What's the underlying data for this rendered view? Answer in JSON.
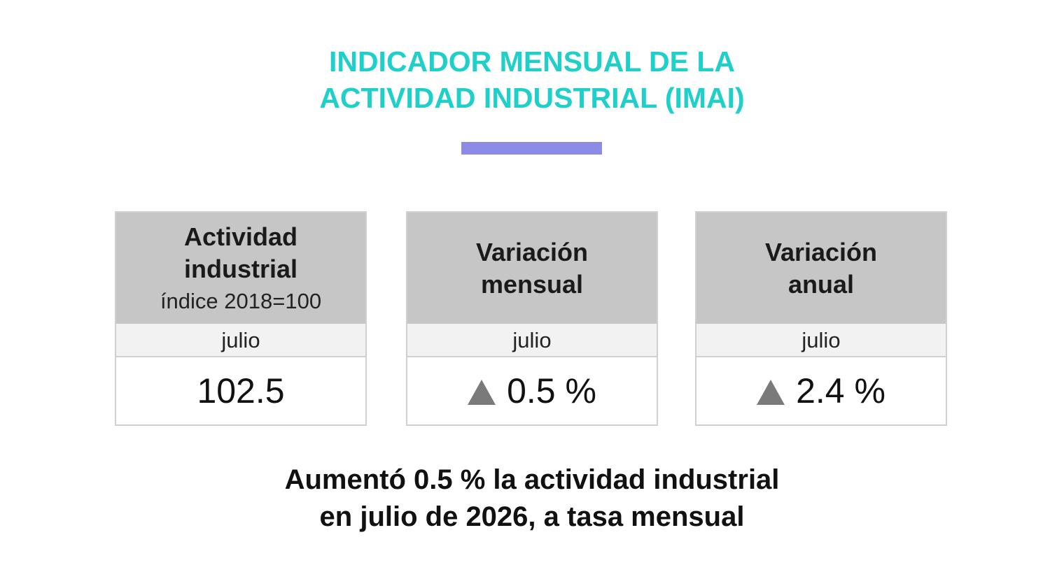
{
  "title": {
    "line1": "INDICADOR MENSUAL DE LA",
    "line2": "ACTIVIDAD INDUSTRIAL (IMAI)"
  },
  "colors": {
    "title": "#1fcfc9",
    "accent_bar": "#8c8ce6",
    "card_header": "#c6c6c6",
    "triangle": "#7a7a7a"
  },
  "cards": [
    {
      "label_line1": "Actividad",
      "label_line2": "industrial",
      "subtitle": "índice 2018=100",
      "period": "julio",
      "value": "102.5",
      "trend_icon": ""
    },
    {
      "label_line1": "Variación",
      "label_line2": "mensual",
      "subtitle": "",
      "period": "julio",
      "value": "0.5 %",
      "trend_icon": "triangle-up-icon"
    },
    {
      "label_line1": "Variación",
      "label_line2": "anual",
      "subtitle": "",
      "period": "julio",
      "value": "2.4 %",
      "trend_icon": "triangle-up-icon"
    }
  ],
  "summary": {
    "line1": "Aumentó 0.5 % la actividad industrial",
    "line2": "en julio de 2026, a tasa mensual"
  }
}
